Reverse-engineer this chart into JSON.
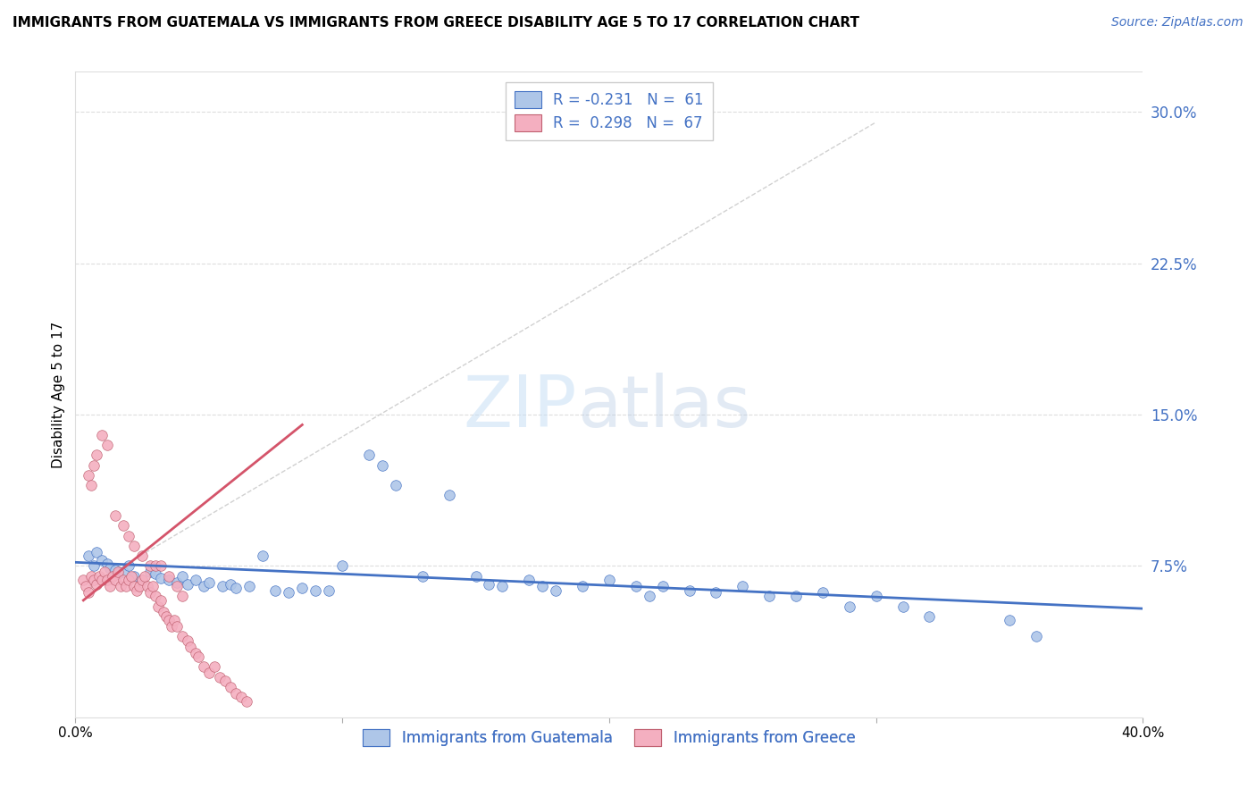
{
  "title": "IMMIGRANTS FROM GUATEMALA VS IMMIGRANTS FROM GREECE DISABILITY AGE 5 TO 17 CORRELATION CHART",
  "source": "Source: ZipAtlas.com",
  "ylabel": "Disability Age 5 to 17",
  "xlim": [
    0.0,
    0.4
  ],
  "ylim": [
    0.0,
    0.32
  ],
  "ytick_labels_right": [
    "30.0%",
    "22.5%",
    "15.0%",
    "7.5%"
  ],
  "ytick_vals_right": [
    0.3,
    0.225,
    0.15,
    0.075
  ],
  "color_guatemala": "#aec6e8",
  "color_greece": "#f4afc0",
  "color_line_guatemala": "#4472c4",
  "color_line_greece": "#d4546a",
  "legend_R_guatemala": "R = -0.231   N =  61",
  "legend_R_greece": "R =  0.298   N =  67",
  "guatemala_x": [
    0.005,
    0.007,
    0.008,
    0.01,
    0.012,
    0.013,
    0.015,
    0.016,
    0.018,
    0.02,
    0.022,
    0.025,
    0.028,
    0.03,
    0.032,
    0.035,
    0.038,
    0.04,
    0.042,
    0.045,
    0.048,
    0.05,
    0.055,
    0.058,
    0.06,
    0.065,
    0.07,
    0.075,
    0.08,
    0.085,
    0.09,
    0.095,
    0.1,
    0.11,
    0.115,
    0.12,
    0.13,
    0.14,
    0.15,
    0.155,
    0.16,
    0.17,
    0.175,
    0.18,
    0.19,
    0.2,
    0.21,
    0.215,
    0.22,
    0.23,
    0.24,
    0.25,
    0.26,
    0.27,
    0.28,
    0.29,
    0.3,
    0.31,
    0.32,
    0.35,
    0.36
  ],
  "guatemala_y": [
    0.08,
    0.075,
    0.082,
    0.078,
    0.076,
    0.074,
    0.073,
    0.071,
    0.072,
    0.075,
    0.07,
    0.068,
    0.072,
    0.071,
    0.069,
    0.068,
    0.067,
    0.07,
    0.066,
    0.068,
    0.065,
    0.067,
    0.065,
    0.066,
    0.064,
    0.065,
    0.08,
    0.063,
    0.062,
    0.064,
    0.063,
    0.063,
    0.075,
    0.13,
    0.125,
    0.115,
    0.07,
    0.11,
    0.07,
    0.066,
    0.065,
    0.068,
    0.065,
    0.063,
    0.065,
    0.068,
    0.065,
    0.06,
    0.065,
    0.063,
    0.062,
    0.065,
    0.06,
    0.06,
    0.062,
    0.055,
    0.06,
    0.055,
    0.05,
    0.048,
    0.04
  ],
  "greece_x": [
    0.003,
    0.004,
    0.005,
    0.006,
    0.007,
    0.008,
    0.009,
    0.01,
    0.011,
    0.012,
    0.013,
    0.014,
    0.015,
    0.016,
    0.017,
    0.018,
    0.019,
    0.02,
    0.021,
    0.022,
    0.023,
    0.024,
    0.025,
    0.026,
    0.027,
    0.028,
    0.029,
    0.03,
    0.031,
    0.032,
    0.033,
    0.034,
    0.035,
    0.036,
    0.037,
    0.038,
    0.04,
    0.042,
    0.043,
    0.045,
    0.046,
    0.048,
    0.05,
    0.052,
    0.054,
    0.056,
    0.058,
    0.06,
    0.062,
    0.064,
    0.005,
    0.006,
    0.007,
    0.008,
    0.01,
    0.012,
    0.015,
    0.018,
    0.02,
    0.022,
    0.025,
    0.028,
    0.03,
    0.032,
    0.035,
    0.038,
    0.04
  ],
  "greece_y": [
    0.068,
    0.065,
    0.062,
    0.07,
    0.068,
    0.066,
    0.07,
    0.068,
    0.072,
    0.068,
    0.065,
    0.07,
    0.068,
    0.072,
    0.065,
    0.068,
    0.065,
    0.068,
    0.07,
    0.065,
    0.063,
    0.065,
    0.068,
    0.07,
    0.065,
    0.062,
    0.065,
    0.06,
    0.055,
    0.058,
    0.052,
    0.05,
    0.048,
    0.045,
    0.048,
    0.045,
    0.04,
    0.038,
    0.035,
    0.032,
    0.03,
    0.025,
    0.022,
    0.025,
    0.02,
    0.018,
    0.015,
    0.012,
    0.01,
    0.008,
    0.12,
    0.115,
    0.125,
    0.13,
    0.14,
    0.135,
    0.1,
    0.095,
    0.09,
    0.085,
    0.08,
    0.075,
    0.075,
    0.075,
    0.07,
    0.065,
    0.06
  ],
  "dashed_line_x": [
    0.005,
    0.3
  ],
  "dashed_line_y": [
    0.065,
    0.295
  ],
  "greece_trend_x": [
    0.003,
    0.085
  ],
  "greece_trend_y_start": 0.058,
  "greece_trend_y_end": 0.145
}
